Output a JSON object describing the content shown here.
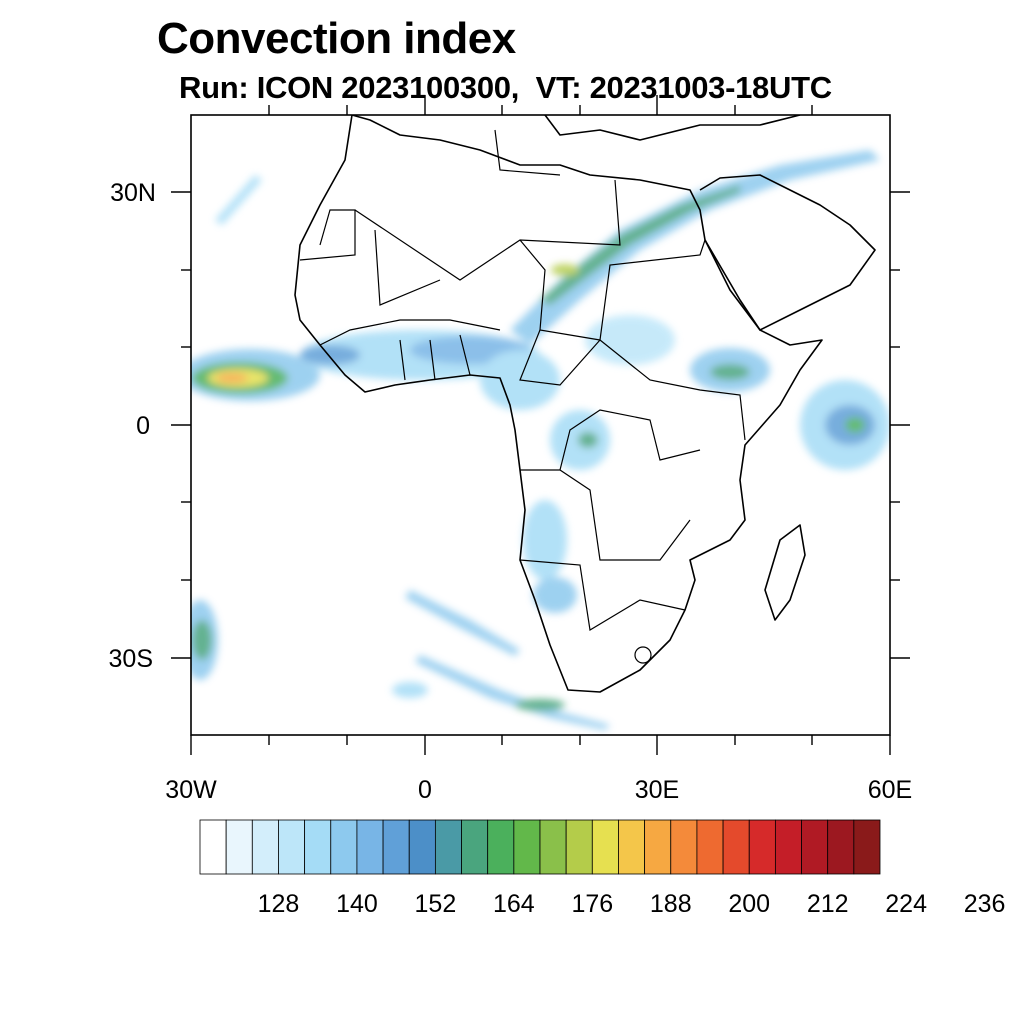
{
  "title": "Convection index",
  "subtitle": "Run: ICON 2023100300,  VT: 20231003-18UTC",
  "map": {
    "region": "Africa",
    "lon_range": [
      -30,
      60
    ],
    "lat_range": [
      -40,
      40
    ],
    "lon_ticks": [
      {
        "lon": -30,
        "label": "30W"
      },
      {
        "lon": 0,
        "label": "0"
      },
      {
        "lon": 30,
        "label": "30E"
      },
      {
        "lon": 60,
        "label": "60E"
      }
    ],
    "lat_ticks": [
      {
        "lat": 30,
        "label": "30N"
      },
      {
        "lat": 0,
        "label": "0"
      },
      {
        "lat": -30,
        "label": "30S"
      }
    ],
    "minor_lon_ticks": [
      -20,
      -10,
      10,
      20,
      40,
      50
    ],
    "minor_lat_ticks": [
      20,
      10,
      -10,
      -20
    ]
  },
  "colorbar": {
    "colors": [
      "#ffffff",
      "#e9f6fd",
      "#d3eefb",
      "#bde6f9",
      "#a5dcf6",
      "#8dc9ee",
      "#78b5e6",
      "#60a0d8",
      "#4c8fc8",
      "#4a9aa6",
      "#4aa57e",
      "#4bb05c",
      "#62b84a",
      "#8ac04a",
      "#b4cc4a",
      "#e6e050",
      "#f4c64a",
      "#f6a842",
      "#f48a3a",
      "#ee6a30",
      "#e44a2c",
      "#d62a2a",
      "#c41e28",
      "#b01a24",
      "#9c1820",
      "#8a1a1a"
    ],
    "labels": [
      "128",
      "140",
      "152",
      "164",
      "176",
      "188",
      "200",
      "212",
      "224",
      "236"
    ]
  }
}
